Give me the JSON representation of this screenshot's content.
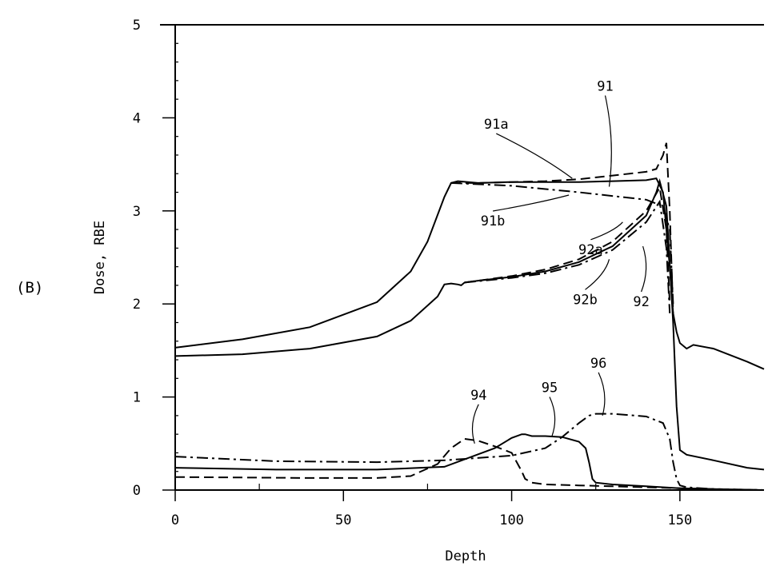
{
  "panel_label": "(B)",
  "chart_data": {
    "type": "line",
    "title": "",
    "xlabel": "Depth",
    "ylabel": "Dose, RBE",
    "xlim": [
      0,
      175
    ],
    "ylim": [
      0,
      5
    ],
    "xticks": [
      "0",
      "50",
      "100",
      "150"
    ],
    "yticks": [
      "0",
      "1",
      "2",
      "3",
      "4",
      "5"
    ],
    "grid": false,
    "series": [
      {
        "name": "91",
        "dash": "solid",
        "x": [
          0,
          20,
          40,
          60,
          70,
          75,
          80,
          82,
          84,
          90,
          100,
          110,
          120,
          130,
          140,
          143,
          145,
          147,
          148,
          149,
          150,
          152,
          154,
          160,
          170,
          175
        ],
        "y": [
          1.53,
          1.62,
          1.75,
          2.02,
          2.35,
          2.67,
          3.15,
          3.3,
          3.32,
          3.3,
          3.31,
          3.31,
          3.31,
          3.32,
          3.33,
          3.35,
          3.2,
          2.4,
          1.9,
          1.7,
          1.58,
          1.52,
          1.56,
          1.52,
          1.38,
          1.3
        ]
      },
      {
        "name": "91a",
        "dash": "dashed",
        "x": [
          82,
          90,
          100,
          110,
          120,
          130,
          140,
          143,
          145,
          146,
          147,
          148
        ],
        "y": [
          3.3,
          3.3,
          3.31,
          3.32,
          3.34,
          3.38,
          3.42,
          3.45,
          3.6,
          3.73,
          3.0,
          1.9
        ]
      },
      {
        "name": "91b",
        "dash": "dashdot",
        "x": [
          82,
          100,
          120,
          140,
          145,
          147,
          148
        ],
        "y": [
          3.3,
          3.27,
          3.2,
          3.12,
          3.05,
          2.8,
          2.0
        ]
      },
      {
        "name": "92",
        "dash": "solid",
        "x": [
          0,
          20,
          40,
          60,
          70,
          78,
          80,
          82,
          84,
          85,
          86,
          90,
          100,
          110,
          120,
          130,
          140,
          143,
          144,
          146,
          148,
          149,
          150,
          152,
          160,
          170,
          175
        ],
        "y": [
          1.44,
          1.46,
          1.52,
          1.65,
          1.82,
          2.08,
          2.21,
          2.22,
          2.21,
          2.2,
          2.23,
          2.25,
          2.29,
          2.35,
          2.45,
          2.62,
          2.95,
          3.2,
          3.32,
          3.05,
          1.8,
          0.9,
          0.43,
          0.38,
          0.32,
          0.24,
          0.22
        ]
      },
      {
        "name": "92a",
        "dash": "dashed",
        "x": [
          86,
          100,
          110,
          120,
          130,
          140,
          144,
          146,
          147
        ],
        "y": [
          2.23,
          2.3,
          2.37,
          2.48,
          2.67,
          3.0,
          3.25,
          2.8,
          2.0
        ]
      },
      {
        "name": "92b",
        "dash": "dashdot",
        "x": [
          86,
          100,
          110,
          120,
          130,
          140,
          144,
          146,
          147
        ],
        "y": [
          2.23,
          2.28,
          2.33,
          2.42,
          2.58,
          2.88,
          3.1,
          2.6,
          1.9
        ]
      },
      {
        "name": "94",
        "dash": "dashed",
        "x": [
          0,
          40,
          60,
          70,
          78,
          82,
          86,
          90,
          95,
          100,
          103,
          104,
          106,
          110,
          120,
          130,
          140,
          150,
          160,
          175
        ],
        "y": [
          0.14,
          0.13,
          0.13,
          0.15,
          0.28,
          0.45,
          0.55,
          0.53,
          0.47,
          0.4,
          0.2,
          0.12,
          0.08,
          0.06,
          0.05,
          0.04,
          0.03,
          0.02,
          0.01,
          0.0
        ]
      },
      {
        "name": "95",
        "dash": "solid",
        "x": [
          0,
          30,
          60,
          80,
          95,
          100,
          103,
          104,
          106,
          110,
          115,
          120,
          122,
          123,
          124,
          125,
          130,
          140,
          150,
          160,
          175
        ],
        "y": [
          0.24,
          0.22,
          0.22,
          0.25,
          0.45,
          0.56,
          0.6,
          0.6,
          0.58,
          0.58,
          0.57,
          0.52,
          0.45,
          0.3,
          0.12,
          0.08,
          0.06,
          0.04,
          0.02,
          0.01,
          0.0
        ]
      },
      {
        "name": "96",
        "dash": "dashdot",
        "x": [
          0,
          30,
          60,
          80,
          100,
          110,
          115,
          120,
          123,
          125,
          130,
          140,
          145,
          147,
          148,
          149,
          150,
          152,
          160,
          175
        ],
        "y": [
          0.36,
          0.31,
          0.3,
          0.32,
          0.37,
          0.45,
          0.57,
          0.72,
          0.8,
          0.82,
          0.82,
          0.79,
          0.72,
          0.55,
          0.3,
          0.12,
          0.05,
          0.03,
          0.01,
          0.0
        ]
      }
    ],
    "annotations": [
      {
        "text": "91",
        "x": 129,
        "y": 3.26
      },
      {
        "text": "91a",
        "x": 118,
        "y": 3.35
      },
      {
        "text": "91b",
        "x": 117,
        "y": 3.17
      },
      {
        "text": "92a",
        "x": 133,
        "y": 2.88
      },
      {
        "text": "92",
        "x": 139,
        "y": 2.62
      },
      {
        "text": "92b",
        "x": 129,
        "y": 2.48
      },
      {
        "text": "94",
        "x": 89,
        "y": 0.5
      },
      {
        "text": "95",
        "x": 112,
        "y": 0.58
      },
      {
        "text": "96",
        "x": 127,
        "y": 0.8
      }
    ]
  }
}
